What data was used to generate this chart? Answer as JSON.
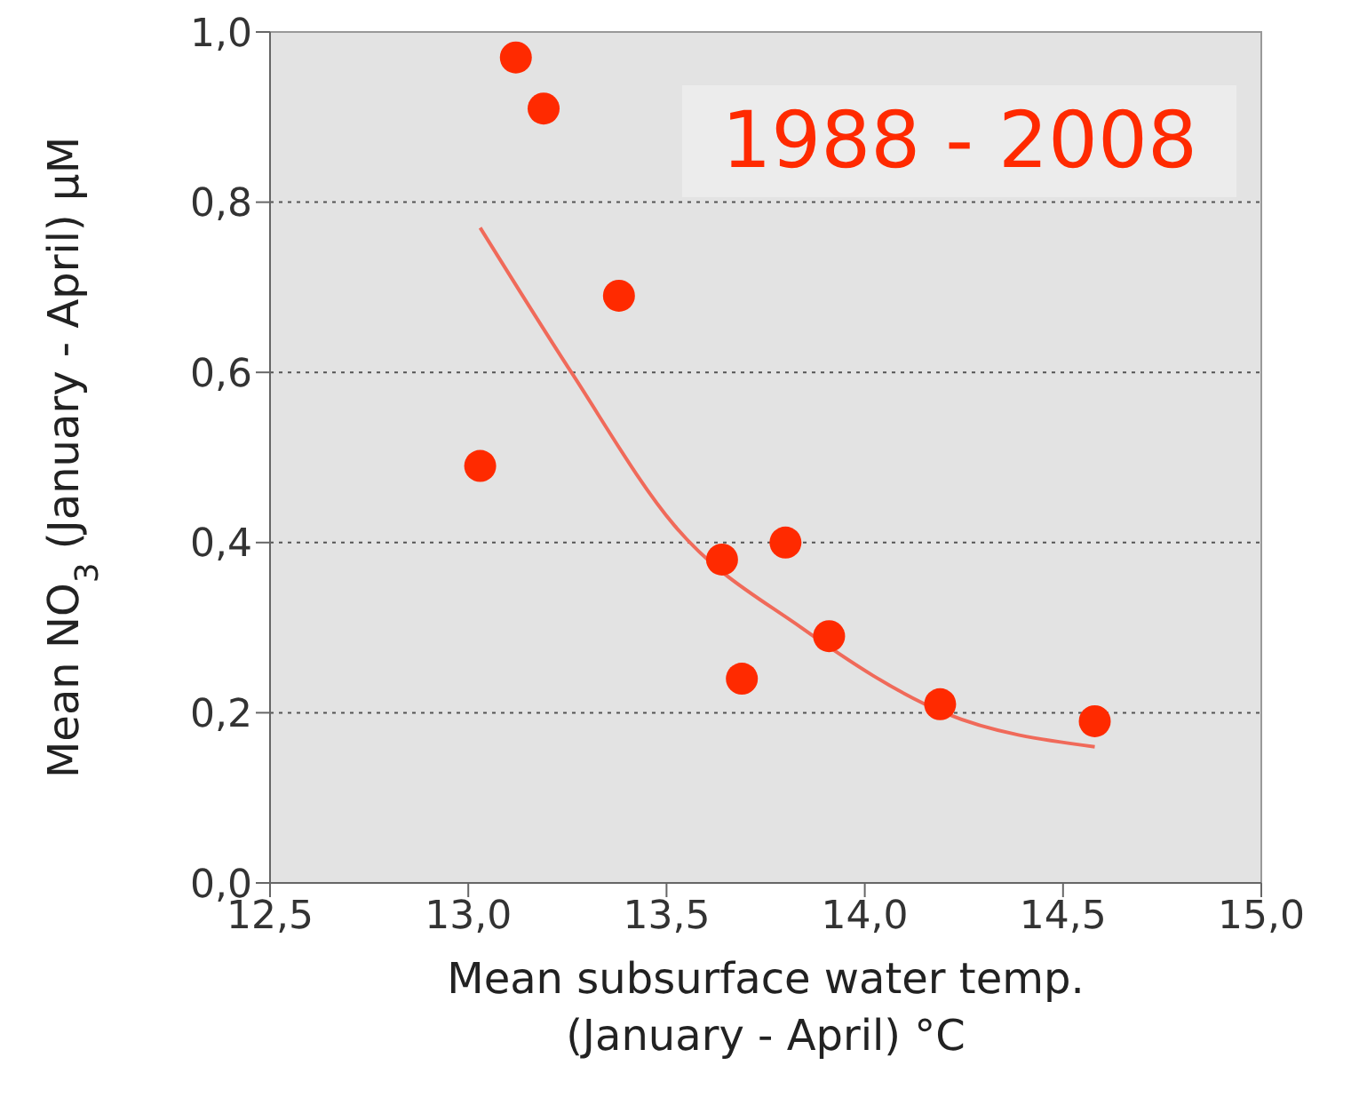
{
  "chart_data": {
    "type": "scatter",
    "xlabel": "Mean subsurface water temp.\n(January - April) °C",
    "ylabel": "Mean NO$_{3}$ (January - April) μM",
    "annotations": [
      "1988 - 2008"
    ],
    "series": [
      {
        "color": "#ff2a00",
        "marker": "circle",
        "x": [
          13.12,
          13.19,
          13.38,
          13.03,
          13.64,
          13.8,
          13.69,
          13.91,
          14.19,
          14.58
        ],
        "values": [
          0.97,
          0.91,
          0.69,
          0.49,
          0.38,
          0.4,
          0.24,
          0.29,
          0.21,
          0.19
        ]
      },
      {
        "type": "line",
        "color": "#f06a5a",
        "marker": "none",
        "x": [
          13.03,
          13.26,
          13.52,
          13.84,
          14.2,
          14.58
        ],
        "values": [
          0.77,
          0.6,
          0.42,
          0.3,
          0.2,
          0.16
        ]
      }
    ],
    "xlim": [
      12.5,
      15
    ],
    "xticks": [
      {
        "value": 12.5,
        "label": "12,5"
      },
      {
        "value": 13,
        "label": "13,0"
      },
      {
        "value": 13.5,
        "label": "13,5"
      },
      {
        "value": 14,
        "label": "14,0"
      },
      {
        "value": 14.5,
        "label": "14,5"
      },
      {
        "value": 15,
        "label": "15,0"
      }
    ],
    "ylim": [
      0,
      1
    ],
    "yticks": [
      {
        "value": 0,
        "label": "0,0"
      },
      {
        "value": 0.2,
        "label": "0,2"
      },
      {
        "value": 0.4,
        "label": "0,4"
      },
      {
        "value": 0.6,
        "label": "0,6"
      },
      {
        "value": 0.8,
        "label": "0,8"
      },
      {
        "value": 1,
        "label": "1,0"
      }
    ],
    "grid": "y",
    "legend": false
  }
}
